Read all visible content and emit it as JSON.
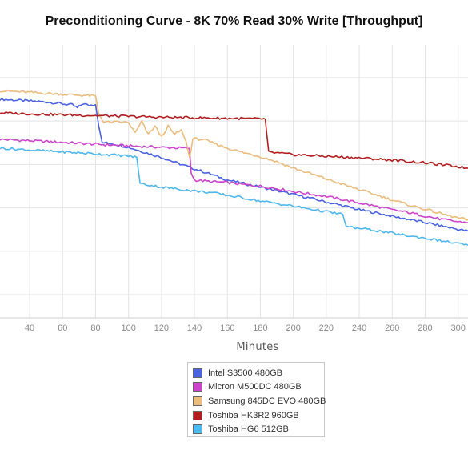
{
  "chart_data": {
    "type": "line",
    "title": "Preconditioning Curve - 8K 70% Read 30% Write [Throughput]",
    "xlabel": "Minutes",
    "ylabel": "",
    "xlim": [
      22,
      306
    ],
    "x_ticks": [
      40,
      60,
      80,
      100,
      120,
      140,
      160,
      180,
      200,
      220,
      240,
      260,
      280,
      300
    ],
    "ylim": [
      0,
      100
    ],
    "y_gridlines": [
      8.5,
      24.4,
      40.3,
      56.2,
      72.1,
      88.0
    ],
    "grid": true,
    "legend_position": "bottom-center",
    "series": [
      {
        "name": "Intel S3500 480GB",
        "color": "#4a63e0",
        "points": [
          [
            22,
            80.1
          ],
          [
            35,
            79.6
          ],
          [
            50,
            79.1
          ],
          [
            60,
            78.4
          ],
          [
            66,
            78.0
          ],
          [
            69,
            76.9
          ],
          [
            72,
            78.4
          ],
          [
            76,
            77.9
          ],
          [
            80,
            78.1
          ],
          [
            82,
            70.0
          ],
          [
            84,
            64.2
          ],
          [
            90,
            63.9
          ],
          [
            100,
            62.5
          ],
          [
            110,
            60.6
          ],
          [
            120,
            58.8
          ],
          [
            130,
            56.6
          ],
          [
            140,
            54.6
          ],
          [
            150,
            52.6
          ],
          [
            160,
            50.5
          ],
          [
            170,
            49.2
          ],
          [
            180,
            47.9
          ],
          [
            190,
            46.6
          ],
          [
            200,
            45.2
          ],
          [
            210,
            43.9
          ],
          [
            220,
            42.4
          ],
          [
            230,
            41.1
          ],
          [
            240,
            39.6
          ],
          [
            250,
            38.5
          ],
          [
            260,
            37.2
          ],
          [
            270,
            36.1
          ],
          [
            280,
            34.9
          ],
          [
            290,
            33.7
          ],
          [
            300,
            32.4
          ],
          [
            306,
            31.8
          ]
        ]
      },
      {
        "name": "Micron M500DC 480GB",
        "color": "#cc44cc",
        "points": [
          [
            22,
            65.4
          ],
          [
            40,
            64.9
          ],
          [
            60,
            64.3
          ],
          [
            80,
            63.6
          ],
          [
            100,
            63.0
          ],
          [
            120,
            62.5
          ],
          [
            137,
            62.1
          ],
          [
            138,
            53.2
          ],
          [
            140,
            50.5
          ],
          [
            150,
            49.9
          ],
          [
            160,
            49.6
          ],
          [
            170,
            48.8
          ],
          [
            180,
            48.2
          ],
          [
            190,
            47.4
          ],
          [
            200,
            46.3
          ],
          [
            210,
            45.4
          ],
          [
            220,
            44.5
          ],
          [
            230,
            43.3
          ],
          [
            240,
            42.1
          ],
          [
            250,
            40.9
          ],
          [
            260,
            39.6
          ],
          [
            270,
            38.6
          ],
          [
            280,
            37.3
          ],
          [
            290,
            36.1
          ],
          [
            300,
            35.2
          ],
          [
            306,
            34.9
          ]
        ]
      },
      {
        "name": "Samsung 845DC EVO 480GB",
        "color": "#ecbc7c",
        "points": [
          [
            22,
            83.2
          ],
          [
            40,
            82.6
          ],
          [
            60,
            81.9
          ],
          [
            80,
            81.3
          ],
          [
            82,
            74.7
          ],
          [
            85,
            71.7
          ],
          [
            96,
            71.7
          ],
          [
            100,
            71.5
          ],
          [
            104,
            67.7
          ],
          [
            108,
            71.9
          ],
          [
            112,
            67.1
          ],
          [
            116,
            70.3
          ],
          [
            120,
            66.3
          ],
          [
            124,
            70.2
          ],
          [
            128,
            67.1
          ],
          [
            132,
            69.0
          ],
          [
            135,
            64.4
          ],
          [
            137,
            58.8
          ],
          [
            138,
            61.5
          ],
          [
            139,
            65.6
          ],
          [
            145,
            65.4
          ],
          [
            160,
            62.2
          ],
          [
            170,
            60.5
          ],
          [
            180,
            59.1
          ],
          [
            190,
            57.2
          ],
          [
            200,
            54.9
          ],
          [
            210,
            52.9
          ],
          [
            220,
            50.9
          ],
          [
            230,
            48.9
          ],
          [
            240,
            47.0
          ],
          [
            250,
            45.1
          ],
          [
            260,
            43.2
          ],
          [
            270,
            41.4
          ],
          [
            280,
            39.8
          ],
          [
            290,
            38.1
          ],
          [
            300,
            36.6
          ],
          [
            306,
            35.9
          ]
        ]
      },
      {
        "name": "Toshiba HK3R2 960GB",
        "color": "#b21e1e",
        "points": [
          [
            22,
            75.1
          ],
          [
            40,
            74.7
          ],
          [
            60,
            74.4
          ],
          [
            80,
            74.1
          ],
          [
            100,
            73.8
          ],
          [
            120,
            73.5
          ],
          [
            140,
            73.3
          ],
          [
            160,
            73.1
          ],
          [
            180,
            72.9
          ],
          [
            183,
            72.8
          ],
          [
            185,
            60.7
          ],
          [
            200,
            59.8
          ],
          [
            220,
            59.2
          ],
          [
            240,
            58.6
          ],
          [
            260,
            57.8
          ],
          [
            280,
            56.8
          ],
          [
            300,
            55.4
          ],
          [
            306,
            54.8
          ]
        ]
      },
      {
        "name": "Toshiba HG6 512GB",
        "color": "#4db8ee",
        "points": [
          [
            22,
            62.2
          ],
          [
            40,
            61.5
          ],
          [
            60,
            60.8
          ],
          [
            80,
            60.1
          ],
          [
            100,
            59.3
          ],
          [
            105,
            58.8
          ],
          [
            107,
            49.2
          ],
          [
            120,
            47.9
          ],
          [
            140,
            46.5
          ],
          [
            150,
            45.9
          ],
          [
            160,
            44.9
          ],
          [
            170,
            43.9
          ],
          [
            180,
            42.8
          ],
          [
            190,
            41.9
          ],
          [
            200,
            40.9
          ],
          [
            210,
            39.9
          ],
          [
            220,
            38.9
          ],
          [
            230,
            37.9
          ],
          [
            232,
            33.4
          ],
          [
            240,
            32.8
          ],
          [
            250,
            32.0
          ],
          [
            260,
            31.0
          ],
          [
            270,
            30.0
          ],
          [
            280,
            29.2
          ],
          [
            290,
            28.2
          ],
          [
            300,
            27.2
          ],
          [
            306,
            26.6
          ]
        ]
      }
    ]
  }
}
